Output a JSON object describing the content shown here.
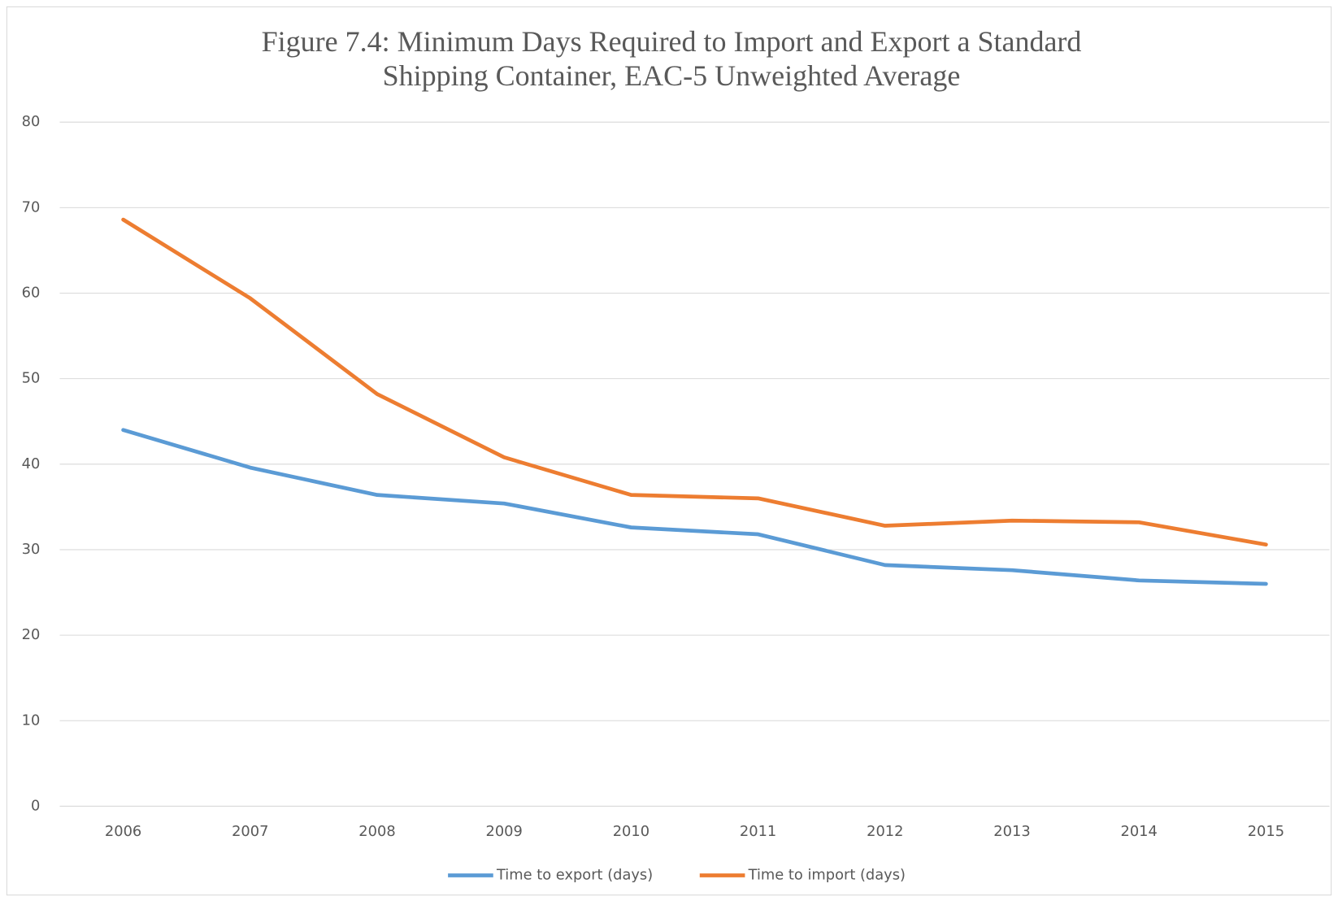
{
  "chart_data": {
    "type": "line",
    "title": "Figure 7.4: Minimum Days Required to Import and Export a Standard Shipping Container, EAC-5 Unweighted Average",
    "categories": [
      "2006",
      "2007",
      "2008",
      "2009",
      "2010",
      "2011",
      "2012",
      "2013",
      "2014",
      "2015"
    ],
    "series": [
      {
        "name": "Time to export (days)",
        "color": "#5b9bd5",
        "values": [
          44.0,
          39.6,
          36.4,
          35.4,
          32.6,
          31.8,
          28.2,
          27.6,
          26.4,
          26.0
        ]
      },
      {
        "name": "Time to import (days)",
        "color": "#ed7d31",
        "values": [
          68.6,
          59.4,
          48.2,
          40.8,
          36.4,
          36.0,
          32.8,
          33.4,
          33.2,
          30.6
        ]
      }
    ],
    "ylim": [
      0,
      80
    ],
    "yticks": [
      0,
      10,
      20,
      30,
      40,
      50,
      60,
      70,
      80
    ],
    "grid": true,
    "legend": "bottom"
  }
}
